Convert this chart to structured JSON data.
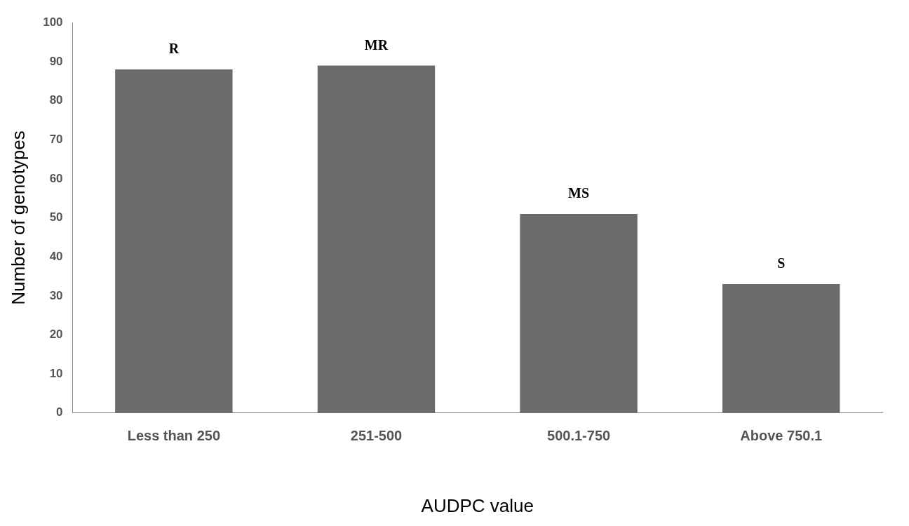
{
  "chart_data": {
    "type": "bar",
    "xlabel": "AUDPC value",
    "ylabel": "Number of genotypes",
    "categories": [
      "Less than 250",
      "251-500",
      "500.1-750",
      "Above 750.1"
    ],
    "values": [
      88,
      89,
      51,
      33
    ],
    "color": "#6b6b6b",
    "ylim": [
      0,
      100
    ],
    "yticks": [
      0,
      10,
      20,
      30,
      40,
      50,
      60,
      70,
      80,
      90,
      100
    ],
    "grid": false,
    "legend": false,
    "annotations": [
      {
        "text": "R",
        "x": "Less than 250",
        "y": 88
      },
      {
        "text": "MR",
        "x": "251-500",
        "y": 89
      },
      {
        "text": "MS",
        "x": "500.1-750",
        "y": 51
      },
      {
        "text": "S",
        "x": "Above 750.1",
        "y": 33
      }
    ]
  }
}
